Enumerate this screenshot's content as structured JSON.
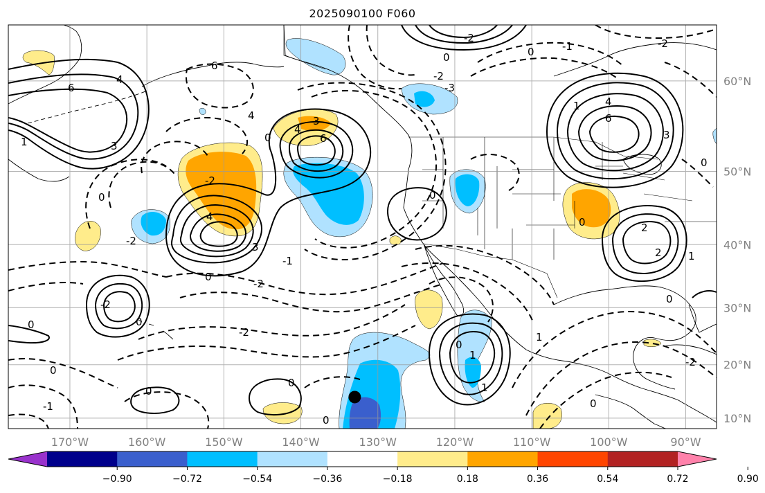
{
  "title": "2025090100 F060",
  "map": {
    "projection": "mercator",
    "lon_range": [
      -178,
      -86
    ],
    "lat_range": [
      8,
      65
    ],
    "lon_ticks": [
      {
        "value": -170,
        "label": "170°W"
      },
      {
        "value": -160,
        "label": "160°W"
      },
      {
        "value": -150,
        "label": "150°W"
      },
      {
        "value": -140,
        "label": "140°W"
      },
      {
        "value": -130,
        "label": "130°W"
      },
      {
        "value": -120,
        "label": "120°W"
      },
      {
        "value": -110,
        "label": "110°W"
      },
      {
        "value": -100,
        "label": "100°W"
      },
      {
        "value": -90,
        "label": "90°W"
      }
    ],
    "lat_ticks": [
      {
        "value": 10,
        "label": "10°N"
      },
      {
        "value": 20,
        "label": "20°N"
      },
      {
        "value": 30,
        "label": "30°N"
      },
      {
        "value": 40,
        "label": "40°N"
      },
      {
        "value": 50,
        "label": "50°N"
      },
      {
        "value": 60,
        "label": "60°N"
      }
    ],
    "grid": true,
    "marker": {
      "lon": -133,
      "lat": 14,
      "color": "#000000"
    },
    "contour_labels": [
      "6",
      "4",
      "3",
      "2",
      "1",
      "0",
      "-1",
      "-2",
      "-3"
    ]
  },
  "colorbar": {
    "levels": [
      "−0.90",
      "−0.72",
      "−0.54",
      "−0.36",
      "−0.18",
      "0.18",
      "0.36",
      "0.54",
      "0.72",
      "0.90"
    ],
    "colors": [
      "#9932cc",
      "#00008b",
      "#3a5fcd",
      "#00bfff",
      "#b0e2ff",
      "#ffffff",
      "#ffec8b",
      "#ffa500",
      "#ff4500",
      "#b22222",
      "#ff82ab"
    ],
    "extend": "both"
  }
}
